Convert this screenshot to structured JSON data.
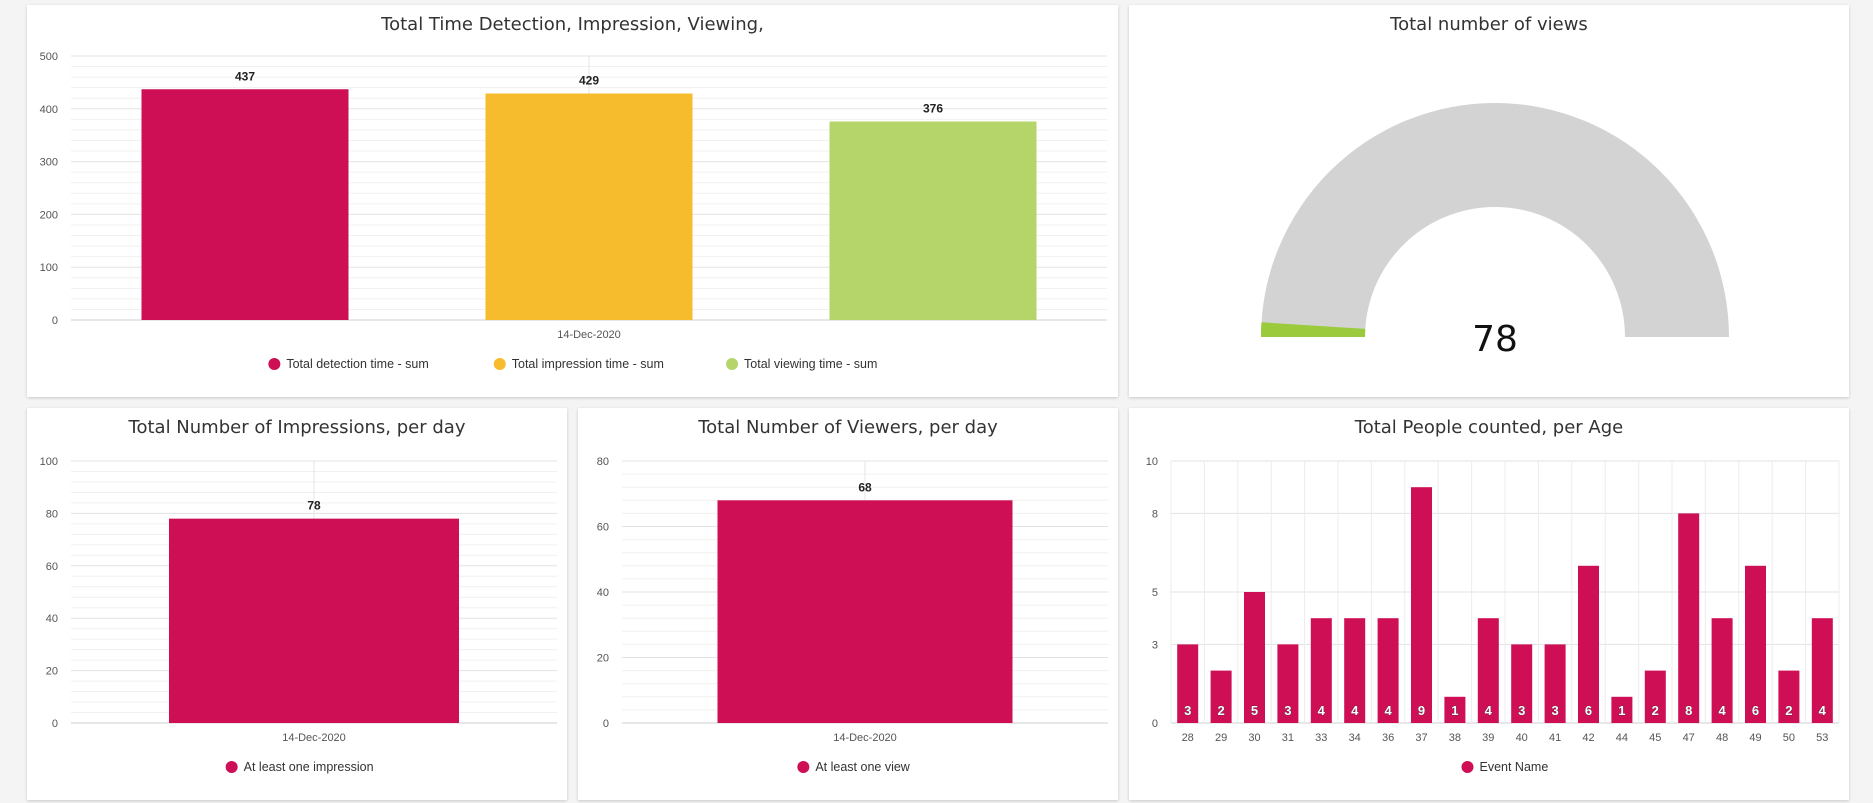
{
  "colors": {
    "crimson": "#CE0E55",
    "amber": "#F7BC2D",
    "lime": "#B5D56B",
    "gauge_track": "#D3D3D3",
    "gauge_fill": "#9BCB3C"
  },
  "panels": {
    "time": {
      "title": "Total Time Detection, Impression, Viewing,"
    },
    "views": {
      "title": "Total number of views"
    },
    "impressions": {
      "title": "Total Number of Impressions, per day"
    },
    "viewers": {
      "title": "Total Number of Viewers, per day"
    },
    "age": {
      "title": "Total People counted, per Age"
    }
  },
  "chart_data": [
    {
      "id": "time",
      "type": "bar",
      "title": "Total Time Detection, Impression, Viewing,",
      "categories": [
        "14-Dec-2020"
      ],
      "series": [
        {
          "name": "Total detection time - sum",
          "values": [
            437
          ],
          "color": "#CE0E55"
        },
        {
          "name": "Total impression time - sum",
          "values": [
            429
          ],
          "color": "#F7BC2D"
        },
        {
          "name": "Total viewing time - sum",
          "values": [
            376
          ],
          "color": "#B5D56B"
        }
      ],
      "y_ticks": [
        0,
        100,
        200,
        300,
        400,
        500
      ],
      "ylim": [
        0,
        500
      ],
      "legend": "bottom",
      "grid": true
    },
    {
      "id": "views",
      "type": "gauge",
      "title": "Total number of views",
      "value": 78,
      "fill_fraction": 0.02,
      "display_value": "78"
    },
    {
      "id": "impressions",
      "type": "bar",
      "title": "Total Number of Impressions, per day",
      "categories": [
        "14-Dec-2020"
      ],
      "series": [
        {
          "name": "At least one impression",
          "values": [
            78
          ],
          "color": "#CE0E55"
        }
      ],
      "y_ticks": [
        0,
        20,
        40,
        60,
        80,
        100
      ],
      "ylim": [
        0,
        100
      ],
      "legend": "bottom",
      "grid": true
    },
    {
      "id": "viewers",
      "type": "bar",
      "title": "Total Number of Viewers, per day",
      "categories": [
        "14-Dec-2020"
      ],
      "series": [
        {
          "name": "At least one view",
          "values": [
            68
          ],
          "color": "#CE0E55"
        }
      ],
      "y_ticks": [
        0,
        20,
        40,
        60,
        80
      ],
      "ylim": [
        0,
        80
      ],
      "legend": "bottom",
      "grid": true
    },
    {
      "id": "age",
      "type": "bar",
      "title": "Total People counted, per Age",
      "categories": [
        "28",
        "29",
        "30",
        "31",
        "33",
        "34",
        "36",
        "37",
        "38",
        "39",
        "40",
        "41",
        "42",
        "44",
        "45",
        "47",
        "48",
        "49",
        "50",
        "53"
      ],
      "series": [
        {
          "name": "Event Name",
          "values": [
            3,
            2,
            5,
            3,
            4,
            4,
            4,
            9,
            1,
            4,
            3,
            3,
            6,
            1,
            2,
            8,
            4,
            6,
            2,
            4
          ],
          "color": "#CE0E55"
        }
      ],
      "y_ticks": [
        0,
        3,
        5,
        8,
        10
      ],
      "ylim": [
        0,
        10
      ],
      "legend": "bottom",
      "grid": true
    }
  ]
}
